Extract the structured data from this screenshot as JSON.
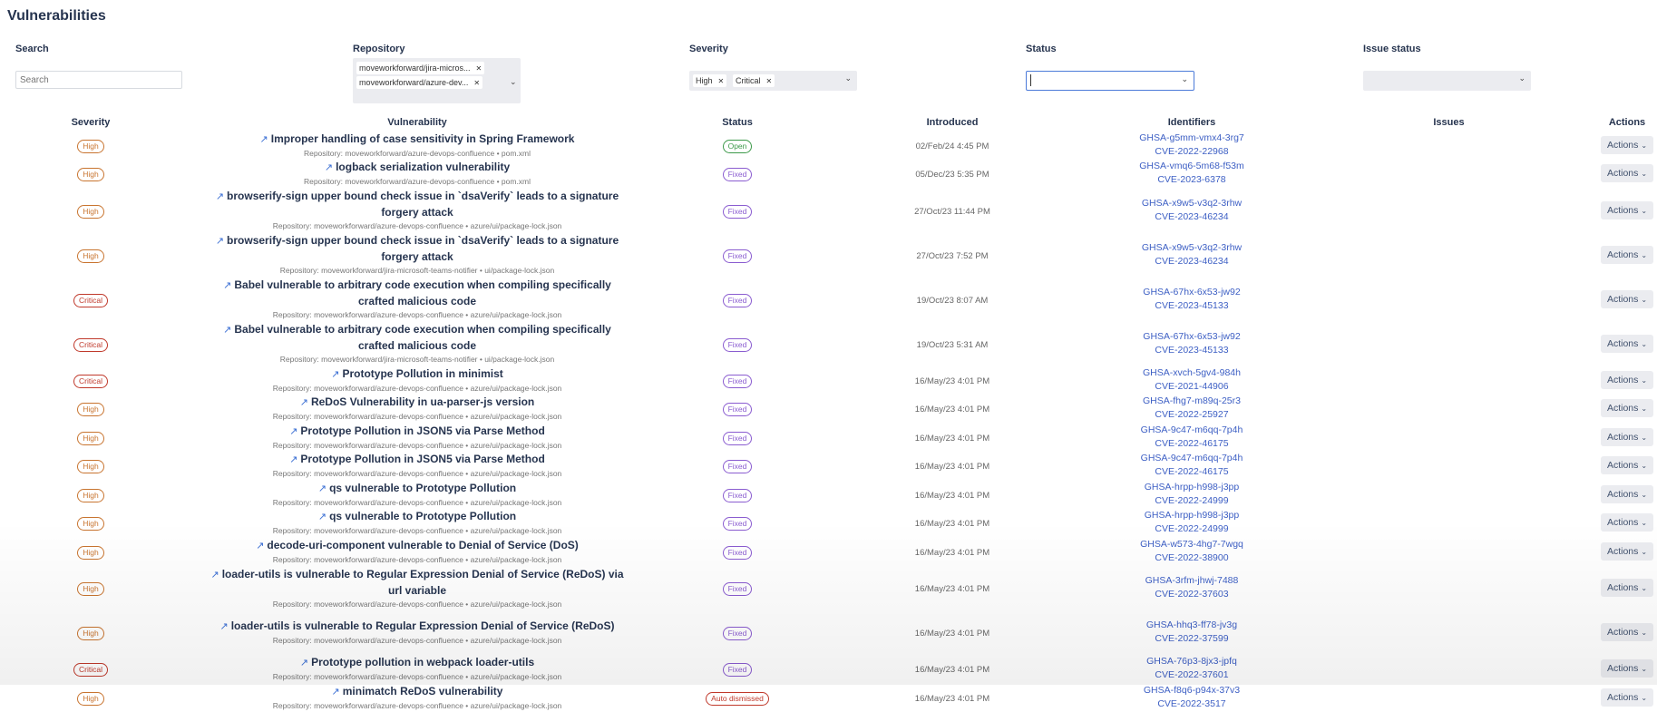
{
  "page": {
    "title": "Vulnerabilities"
  },
  "filters": {
    "search": {
      "label": "Search",
      "placeholder": "Search",
      "value": ""
    },
    "repository": {
      "label": "Repository",
      "selected": [
        "moveworkforward/jira-micros...",
        "moveworkforward/azure-dev..."
      ]
    },
    "severity": {
      "label": "Severity",
      "selected": [
        "High",
        "Critical"
      ]
    },
    "status": {
      "label": "Status",
      "value": ""
    },
    "issue_status": {
      "label": "Issue status",
      "value": ""
    }
  },
  "table": {
    "columns": [
      "Severity",
      "Vulnerability",
      "Status",
      "Introduced",
      "Identifiers",
      "Issues",
      "Actions"
    ],
    "repo_prefix": "Repository: ",
    "rows": [
      {
        "severity": "High",
        "title": "Improper handling of case sensitivity in Spring Framework",
        "repo": "moveworkforward/azure-devops-confluence • pom.xml",
        "status": "Open",
        "introduced": "02/Feb/24 4:45 PM",
        "ghsa": "GHSA-g5mm-vmx4-3rg7",
        "cve": "CVE-2022-22968",
        "actions": "Actions"
      },
      {
        "severity": "High",
        "title": "logback serialization vulnerability",
        "repo": "moveworkforward/azure-devops-confluence • pom.xml",
        "status": "Fixed",
        "introduced": "05/Dec/23 5:35 PM",
        "ghsa": "GHSA-vmq6-5m68-f53m",
        "cve": "CVE-2023-6378",
        "actions": "Actions"
      },
      {
        "severity": "High",
        "title": "browserify-sign upper bound check issue in `dsaVerify` leads to a signature forgery attack",
        "repo": "moveworkforward/azure-devops-confluence • azure/ui/package-lock.json",
        "status": "Fixed",
        "introduced": "27/Oct/23 11:44 PM",
        "ghsa": "GHSA-x9w5-v3q2-3rhw",
        "cve": "CVE-2023-46234",
        "actions": "Actions"
      },
      {
        "severity": "High",
        "title": "browserify-sign upper bound check issue in `dsaVerify` leads to a signature forgery attack",
        "repo": "moveworkforward/jira-microsoft-teams-notifier • ui/package-lock.json",
        "status": "Fixed",
        "introduced": "27/Oct/23 7:52 PM",
        "ghsa": "GHSA-x9w5-v3q2-3rhw",
        "cve": "CVE-2023-46234",
        "actions": "Actions"
      },
      {
        "severity": "Critical",
        "title": "Babel vulnerable to arbitrary code execution when compiling specifically crafted malicious code",
        "repo": "moveworkforward/azure-devops-confluence • azure/ui/package-lock.json",
        "status": "Fixed",
        "introduced": "19/Oct/23 8:07 AM",
        "ghsa": "GHSA-67hx-6x53-jw92",
        "cve": "CVE-2023-45133",
        "actions": "Actions"
      },
      {
        "severity": "Critical",
        "title": "Babel vulnerable to arbitrary code execution when compiling specifically crafted malicious code",
        "repo": "moveworkforward/jira-microsoft-teams-notifier • ui/package-lock.json",
        "status": "Fixed",
        "introduced": "19/Oct/23 5:31 AM",
        "ghsa": "GHSA-67hx-6x53-jw92",
        "cve": "CVE-2023-45133",
        "actions": "Actions"
      },
      {
        "severity": "Critical",
        "title": "Prototype Pollution in minimist",
        "repo": "moveworkforward/azure-devops-confluence • azure/ui/package-lock.json",
        "status": "Fixed",
        "introduced": "16/May/23 4:01 PM",
        "ghsa": "GHSA-xvch-5gv4-984h",
        "cve": "CVE-2021-44906",
        "actions": "Actions"
      },
      {
        "severity": "High",
        "title": "ReDoS Vulnerability in ua-parser-js version",
        "repo": "moveworkforward/azure-devops-confluence • azure/ui/package-lock.json",
        "status": "Fixed",
        "introduced": "16/May/23 4:01 PM",
        "ghsa": "GHSA-fhg7-m89q-25r3",
        "cve": "CVE-2022-25927",
        "actions": "Actions"
      },
      {
        "severity": "High",
        "title": "Prototype Pollution in JSON5 via Parse Method",
        "repo": "moveworkforward/azure-devops-confluence • azure/ui/package-lock.json",
        "status": "Fixed",
        "introduced": "16/May/23 4:01 PM",
        "ghsa": "GHSA-9c47-m6qq-7p4h",
        "cve": "CVE-2022-46175",
        "actions": "Actions"
      },
      {
        "severity": "High",
        "title": "Prototype Pollution in JSON5 via Parse Method",
        "repo": "moveworkforward/azure-devops-confluence • azure/ui/package-lock.json",
        "status": "Fixed",
        "introduced": "16/May/23 4:01 PM",
        "ghsa": "GHSA-9c47-m6qq-7p4h",
        "cve": "CVE-2022-46175",
        "actions": "Actions"
      },
      {
        "severity": "High",
        "title": "qs vulnerable to Prototype Pollution",
        "repo": "moveworkforward/azure-devops-confluence • azure/ui/package-lock.json",
        "status": "Fixed",
        "introduced": "16/May/23 4:01 PM",
        "ghsa": "GHSA-hrpp-h998-j3pp",
        "cve": "CVE-2022-24999",
        "actions": "Actions"
      },
      {
        "severity": "High",
        "title": "qs vulnerable to Prototype Pollution",
        "repo": "moveworkforward/azure-devops-confluence • azure/ui/package-lock.json",
        "status": "Fixed",
        "introduced": "16/May/23 4:01 PM",
        "ghsa": "GHSA-hrpp-h998-j3pp",
        "cve": "CVE-2022-24999",
        "actions": "Actions"
      },
      {
        "severity": "High",
        "title": "decode-uri-component vulnerable to Denial of Service (DoS)",
        "repo": "moveworkforward/azure-devops-confluence • azure/ui/package-lock.json",
        "status": "Fixed",
        "introduced": "16/May/23 4:01 PM",
        "ghsa": "GHSA-w573-4hg7-7wgq",
        "cve": "CVE-2022-38900",
        "actions": "Actions"
      },
      {
        "severity": "High",
        "title": "loader-utils is vulnerable to Regular Expression Denial of Service (ReDoS) via url variable",
        "repo": "moveworkforward/azure-devops-confluence • azure/ui/package-lock.json",
        "status": "Fixed",
        "introduced": "16/May/23 4:01 PM",
        "ghsa": "GHSA-3rfm-jhwj-7488",
        "cve": "CVE-2022-37603",
        "actions": "Actions"
      },
      {
        "severity": "High",
        "title": "loader-utils is vulnerable to Regular Expression Denial of Service (ReDoS)",
        "repo": "moveworkforward/azure-devops-confluence • azure/ui/package-lock.json",
        "status": "Fixed",
        "introduced": "16/May/23 4:01 PM",
        "ghsa": "GHSA-hhq3-ff78-jv3g",
        "cve": "CVE-2022-37599",
        "actions": "Actions"
      },
      {
        "severity": "Critical",
        "title": "Prototype pollution in webpack loader-utils",
        "repo": "moveworkforward/azure-devops-confluence • azure/ui/package-lock.json",
        "status": "Fixed",
        "introduced": "16/May/23 4:01 PM",
        "ghsa": "GHSA-76p3-8jx3-jpfq",
        "cve": "CVE-2022-37601",
        "actions": "Actions"
      },
      {
        "severity": "High",
        "title": "minimatch ReDoS vulnerability",
        "repo": "moveworkforward/azure-devops-confluence • azure/ui/package-lock.json",
        "status": "Auto dismissed",
        "introduced": "16/May/23 4:01 PM",
        "ghsa": "GHSA-f8q6-p94x-37v3",
        "cve": "CVE-2022-3517",
        "actions": "Actions"
      }
    ]
  },
  "colors": {
    "High": "#c8742f",
    "Critical": "#c0392b",
    "Open": "#3d9a4a",
    "Fixed": "#8a5cd0",
    "Auto dismissed": "#c0392b",
    "link": "#3d5fc4",
    "focus": "#4c7bd9"
  },
  "icons": {
    "external_link": "external-link-icon",
    "chevron": "chevron-down-icon"
  }
}
